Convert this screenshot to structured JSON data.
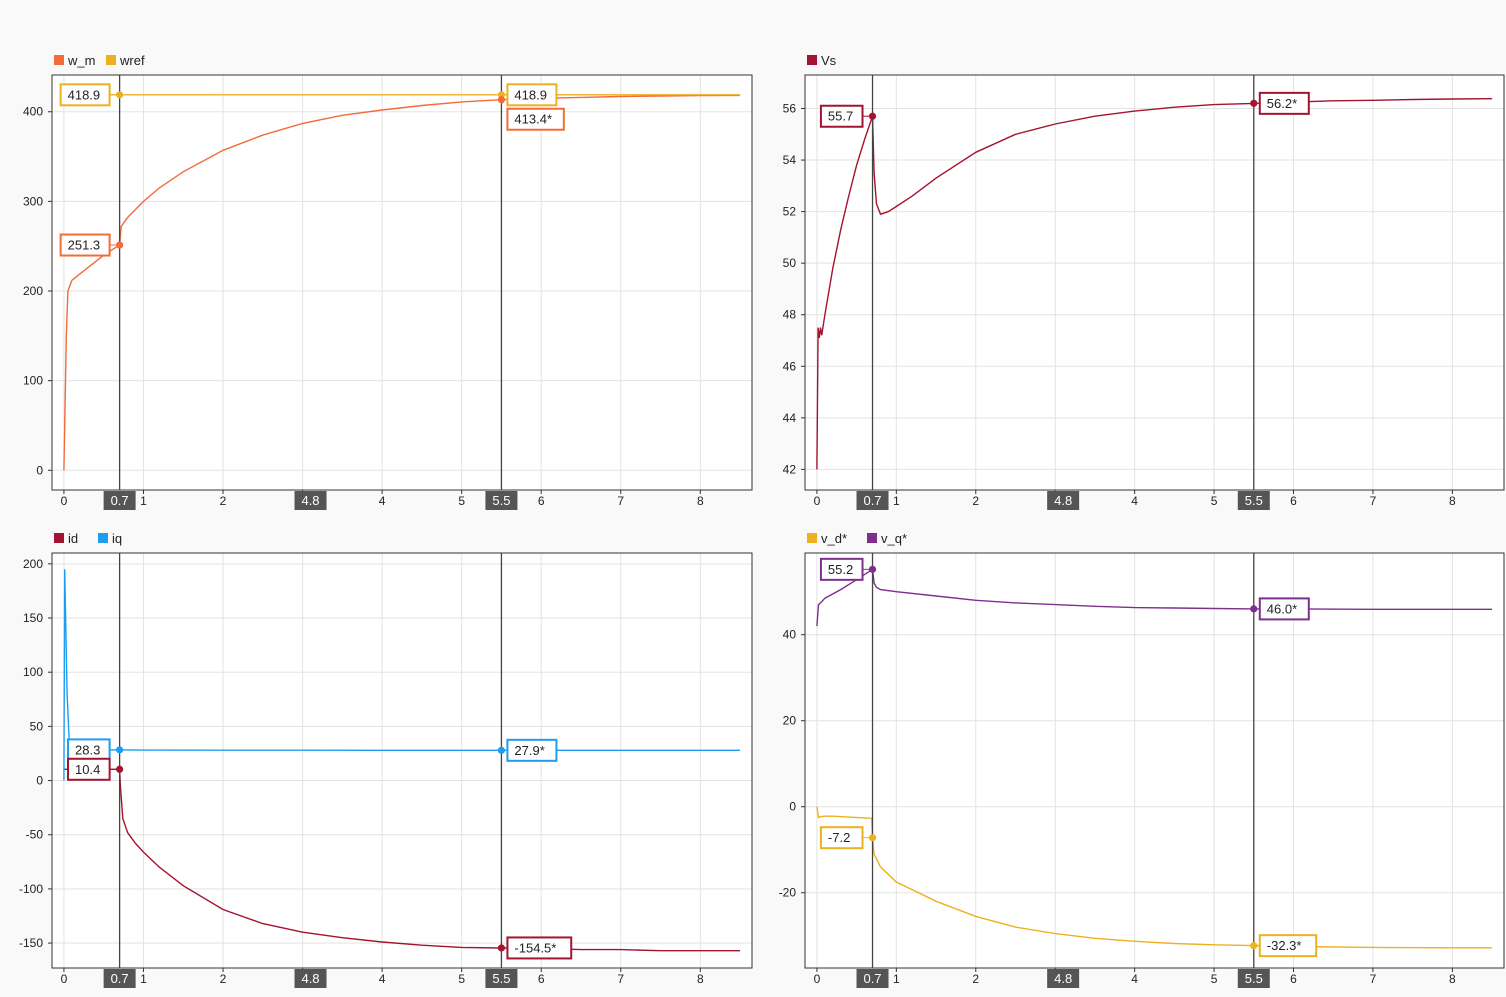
{
  "chart_data": [
    {
      "type": "line",
      "legend_position": "top-left",
      "grid": true,
      "xlim": [
        -0.15,
        8.65
      ],
      "ylim": [
        -22,
        441
      ],
      "xticks": [
        0,
        1,
        2,
        3,
        4,
        5,
        6,
        7,
        8
      ],
      "yticks": [
        0,
        100,
        200,
        300,
        400
      ],
      "cursors": [
        {
          "label": "0.7",
          "x": 0.7
        },
        {
          "label": "5.5",
          "x": 5.5
        }
      ],
      "cursor_delta": {
        "label": "4.8",
        "x": 3.1
      },
      "series": [
        {
          "name": "w_m",
          "color": "#f26b38",
          "x": [
            0,
            0.03,
            0.05,
            0.1,
            0.3,
            0.5,
            0.7,
            0.72,
            0.8,
            1,
            1.2,
            1.5,
            2,
            2.5,
            3,
            3.5,
            4,
            4.5,
            5,
            5.5,
            6,
            6.5,
            7,
            7.5,
            8,
            8.5
          ],
          "values": [
            0,
            150,
            200,
            212,
            226,
            240,
            251.3,
            272,
            282,
            300,
            315,
            333,
            357,
            374,
            387,
            396,
            402,
            407,
            411,
            413.4,
            415,
            416,
            417,
            417.5,
            418,
            418.2
          ]
        },
        {
          "name": "wref",
          "color": "#edb120",
          "x": [
            0,
            8.5
          ],
          "values": [
            418.9,
            418.9
          ]
        }
      ],
      "datatips": [
        {
          "label": "418.9",
          "x": 0.7,
          "y": 418.9,
          "series": 1,
          "side": "left"
        },
        {
          "label": "251.3",
          "x": 0.7,
          "y": 251.3,
          "series": 0,
          "side": "left"
        },
        {
          "label": "418.9",
          "x": 5.5,
          "y": 418.9,
          "series": 1,
          "side": "right"
        },
        {
          "label": "413.4*",
          "x": 5.5,
          "y": 413.4,
          "series": 0,
          "side": "right-below"
        }
      ]
    },
    {
      "type": "line",
      "legend_position": "top-left",
      "grid": true,
      "xlim": [
        -0.15,
        8.65
      ],
      "ylim": [
        41.2,
        57.3
      ],
      "xticks": [
        0,
        1,
        2,
        3,
        4,
        5,
        6,
        7,
        8
      ],
      "yticks": [
        42,
        44,
        46,
        48,
        50,
        52,
        54,
        56
      ],
      "cursors": [
        {
          "label": "0.7",
          "x": 0.7
        },
        {
          "label": "5.5",
          "x": 5.5
        }
      ],
      "cursor_delta": {
        "label": "4.8",
        "x": 3.1
      },
      "series": [
        {
          "name": "Vs",
          "color": "#a2142f",
          "x": [
            0,
            0.015,
            0.03,
            0.045,
            0.06,
            0.1,
            0.2,
            0.3,
            0.4,
            0.5,
            0.6,
            0.7,
            0.72,
            0.75,
            0.8,
            0.9,
            1,
            1.2,
            1.5,
            2,
            2.5,
            3,
            3.5,
            4,
            4.5,
            5,
            5.5,
            6,
            6.5,
            7,
            7.5,
            8,
            8.5
          ],
          "values": [
            42,
            47.5,
            47.1,
            47.5,
            47.2,
            48,
            49.8,
            51.3,
            52.6,
            53.8,
            54.8,
            55.7,
            53.5,
            52.3,
            51.9,
            52,
            52.2,
            52.6,
            53.3,
            54.3,
            55,
            55.4,
            55.7,
            55.9,
            56.05,
            56.15,
            56.2,
            56.25,
            56.3,
            56.32,
            56.35,
            56.37,
            56.38
          ]
        }
      ],
      "datatips": [
        {
          "label": "55.7",
          "x": 0.7,
          "y": 55.7,
          "series": 0,
          "side": "left"
        },
        {
          "label": "56.2*",
          "x": 5.5,
          "y": 56.2,
          "series": 0,
          "side": "right"
        }
      ]
    },
    {
      "type": "line",
      "legend_position": "top-left",
      "grid": true,
      "xlim": [
        -0.15,
        8.65
      ],
      "ylim": [
        -173,
        210
      ],
      "xticks": [
        0,
        1,
        2,
        3,
        4,
        5,
        6,
        7,
        8
      ],
      "yticks": [
        -150,
        -100,
        -50,
        0,
        50,
        100,
        150,
        200
      ],
      "cursors": [
        {
          "label": "0.7",
          "x": 0.7
        },
        {
          "label": "5.5",
          "x": 5.5
        }
      ],
      "cursor_delta": {
        "label": "4.8",
        "x": 3.1
      },
      "series": [
        {
          "name": "id",
          "color": "#a2142f",
          "x": [
            0,
            0.7,
            0.71,
            0.74,
            0.8,
            0.9,
            1,
            1.2,
            1.5,
            2,
            2.5,
            3,
            3.5,
            4,
            4.5,
            5,
            5.5,
            6,
            6.5,
            7,
            7.5,
            8,
            8.5
          ],
          "values": [
            10.4,
            10.4,
            -5,
            -35,
            -48,
            -58,
            -66,
            -80,
            -97,
            -119,
            -132,
            -140,
            -145,
            -149,
            -152,
            -154,
            -154.5,
            -155,
            -156,
            -156,
            -157,
            -157,
            -157
          ]
        },
        {
          "name": "iq",
          "color": "#1e9df0",
          "x": [
            0,
            0.01,
            0.04,
            0.07,
            0.1,
            0.3,
            0.7,
            1,
            2,
            3,
            4,
            5,
            5.5,
            6,
            7,
            8,
            8.5
          ],
          "values": [
            0,
            195,
            80,
            30,
            28.5,
            28.4,
            28.3,
            28.1,
            28,
            28,
            27.9,
            27.9,
            27.9,
            27.9,
            27.9,
            27.9,
            27.9
          ]
        }
      ],
      "datatips": [
        {
          "label": "28.3",
          "x": 0.7,
          "y": 28.3,
          "series": 1,
          "side": "left"
        },
        {
          "label": "10.4",
          "x": 0.7,
          "y": 10.4,
          "series": 0,
          "side": "left"
        },
        {
          "label": "27.9*",
          "x": 5.5,
          "y": 27.9,
          "series": 1,
          "side": "right"
        },
        {
          "label": "-154.5*",
          "x": 5.5,
          "y": -154.5,
          "series": 0,
          "side": "right"
        }
      ]
    },
    {
      "type": "line",
      "legend_position": "top-left",
      "grid": true,
      "xlim": [
        -0.15,
        8.65
      ],
      "ylim": [
        -37.5,
        59
      ],
      "xticks": [
        0,
        1,
        2,
        3,
        4,
        5,
        6,
        7,
        8
      ],
      "yticks": [
        -20,
        0,
        20,
        40
      ],
      "cursors": [
        {
          "label": "0.7",
          "x": 0.7
        },
        {
          "label": "5.5",
          "x": 5.5
        }
      ],
      "cursor_delta": {
        "label": "4.8",
        "x": 3.1
      },
      "series": [
        {
          "name": "v_d*",
          "color": "#edb120",
          "x": [
            0,
            0.02,
            0.05,
            0.1,
            0.2,
            0.4,
            0.6,
            0.69,
            0.7,
            0.72,
            0.8,
            1,
            1.5,
            2,
            2.5,
            3,
            3.5,
            4,
            4.5,
            5,
            5.5,
            6,
            7,
            8,
            8.5
          ],
          "values": [
            0,
            -2.5,
            -2.3,
            -2.2,
            -2.2,
            -2.4,
            -2.6,
            -2.7,
            -7.2,
            -11,
            -14,
            -17.5,
            -22,
            -25.5,
            -28,
            -29.5,
            -30.6,
            -31.3,
            -31.8,
            -32.1,
            -32.3,
            -32.5,
            -32.7,
            -32.8,
            -32.8
          ]
        },
        {
          "name": "v_q*",
          "color": "#7e2f8e",
          "x": [
            0,
            0.02,
            0.05,
            0.1,
            0.3,
            0.5,
            0.7,
            0.72,
            0.75,
            0.8,
            1,
            1.5,
            2,
            2.5,
            3,
            3.5,
            4,
            4.5,
            5,
            5.5,
            6,
            7,
            8,
            8.5
          ],
          "values": [
            42,
            47,
            47.5,
            48.5,
            50.5,
            52.8,
            55.2,
            52,
            51,
            50.5,
            50,
            49,
            48,
            47.4,
            47,
            46.6,
            46.3,
            46.2,
            46.1,
            46,
            46,
            45.9,
            45.9,
            45.9
          ]
        }
      ],
      "datatips": [
        {
          "label": "55.2",
          "x": 0.7,
          "y": 55.2,
          "series": 1,
          "side": "left"
        },
        {
          "label": "46.0*",
          "x": 5.5,
          "y": 46.0,
          "series": 1,
          "side": "right"
        },
        {
          "label": "-7.2",
          "x": 0.7,
          "y": -7.2,
          "series": 0,
          "side": "left"
        },
        {
          "label": "-32.3*",
          "x": 5.5,
          "y": -32.3,
          "series": 0,
          "side": "right"
        }
      ]
    }
  ]
}
